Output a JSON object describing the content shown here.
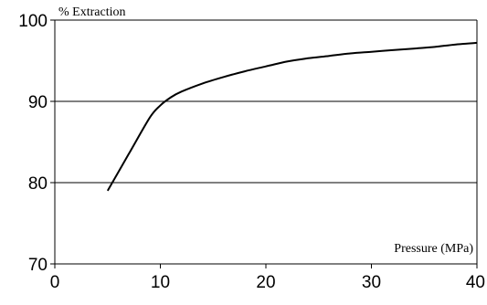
{
  "chart_data": {
    "type": "line",
    "title": "",
    "xlabel": "Pressure (MPa)",
    "ylabel": "% Extraction",
    "xlim": [
      0,
      40
    ],
    "ylim": [
      70,
      100
    ],
    "x_ticks": [
      "0",
      "10",
      "20",
      "30",
      "40"
    ],
    "y_ticks": [
      "70",
      "80",
      "90",
      "100"
    ],
    "grid": "horizontal",
    "line_color": "#000000",
    "series": [
      {
        "x": [
          5,
          7,
          9,
          10,
          11,
          12,
          14,
          16,
          18,
          20,
          22,
          24,
          26,
          28,
          30,
          32,
          34,
          36,
          38,
          40
        ],
        "values": [
          79,
          83.5,
          88,
          89.5,
          90.5,
          91.2,
          92.2,
          93,
          93.7,
          94.3,
          94.9,
          95.3,
          95.6,
          95.9,
          96.1,
          96.3,
          96.5,
          96.7,
          97,
          97.2
        ]
      }
    ]
  }
}
